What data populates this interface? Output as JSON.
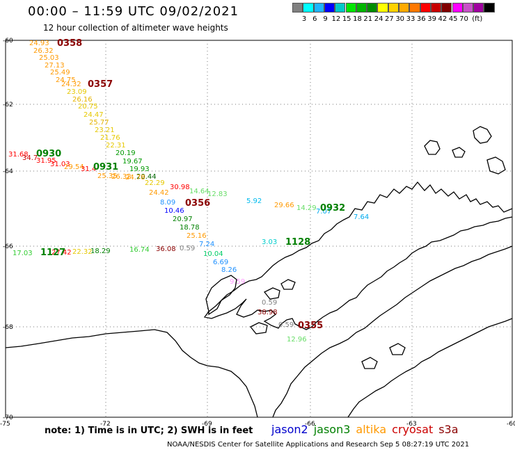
{
  "title": "00:00 – 11:59 UTC 09/02/2021",
  "subtitle": "12 hour collection of altimeter wave heights",
  "scale": {
    "colors": [
      "#808080",
      "#00ffff",
      "#1fb4ff",
      "#0000ff",
      "#00c8c8",
      "#00e600",
      "#00b400",
      "#008c00",
      "#ffff00",
      "#ffd200",
      "#ffaa00",
      "#ff7800",
      "#ff0000",
      "#c80000",
      "#800000",
      "#ff00ff",
      "#c850c8",
      "#a000a0",
      "#000000"
    ],
    "labels": [
      "3",
      "6",
      "9",
      "12",
      "15",
      "18",
      "21",
      "24",
      "27",
      "30",
      "33",
      "36",
      "39",
      "42",
      "45",
      "70",
      "(ft)"
    ]
  },
  "axes": {
    "lat_labels": [
      "-60",
      "-62",
      "-64",
      "-66",
      "-68",
      "-70"
    ],
    "lon_labels": [
      "-75",
      "-72",
      "-69",
      "-66",
      "-63",
      "-60"
    ]
  },
  "tracks": [
    {
      "time": "0358",
      "color": "#8b0000",
      "values": [
        {
          "v": "24.93",
          "c": "#ff9900"
        },
        {
          "v": "26.32",
          "c": "#ff9900"
        },
        {
          "v": "25.03",
          "c": "#ff9900"
        },
        {
          "v": "27.13",
          "c": "#ff9900"
        },
        {
          "v": "25.49",
          "c": "#ff9900"
        },
        {
          "v": "24.75",
          "c": "#ff9900"
        },
        {
          "v": "24.32",
          "c": "#ff9900"
        }
      ]
    },
    {
      "time": "0357",
      "color": "#8b0000",
      "values": [
        {
          "v": "23.09",
          "c": "#e6c800"
        },
        {
          "v": "26.16",
          "c": "#e6b400"
        },
        {
          "v": "20.75",
          "c": "#e6c800"
        },
        {
          "v": "24.47",
          "c": "#e6c800"
        },
        {
          "v": "25.77",
          "c": "#e6b400"
        },
        {
          "v": "23.21",
          "c": "#e6c800"
        },
        {
          "v": "21.76",
          "c": "#e6c800"
        },
        {
          "v": "22.31",
          "c": "#e6c800"
        }
      ]
    },
    {
      "time": "0930",
      "color": "#008000",
      "values": [
        {
          "v": "31.68",
          "c": "#ff0000"
        },
        {
          "v": "34.7",
          "c": "#c80000"
        },
        {
          "v": "31.95",
          "c": "#ff0000"
        },
        {
          "v": "31.03",
          "c": "#ff0000"
        }
      ]
    },
    {
      "time": "0931",
      "color": "#008000",
      "values": [
        {
          "v": "29.54",
          "c": "#ff9900"
        },
        {
          "v": "31.4",
          "c": "#ff0000"
        },
        {
          "v": "20.19",
          "c": "#009900"
        },
        {
          "v": "19.67",
          "c": "#009900"
        },
        {
          "v": "19.93",
          "c": "#009900"
        },
        {
          "v": "20.44",
          "c": "#006600"
        }
      ]
    },
    {
      "time": "0356",
      "color": "#8b0000",
      "values": [
        {
          "v": "25.35",
          "c": "#ff9900"
        },
        {
          "v": "26.32",
          "c": "#ff9900"
        },
        {
          "v": "24.78",
          "c": "#ff9900"
        },
        {
          "v": "22.29",
          "c": "#e6c800"
        },
        {
          "v": "24.42",
          "c": "#ff9900"
        },
        {
          "v": "30.98",
          "c": "#ff0000"
        },
        {
          "v": "8.09",
          "c": "#1e90ff"
        },
        {
          "v": "10.46",
          "c": "#0000ff"
        },
        {
          "v": "20.97",
          "c": "#008000"
        },
        {
          "v": "18.78",
          "c": "#008000"
        },
        {
          "v": "25.16",
          "c": "#ff9900"
        },
        {
          "v": "7.24",
          "c": "#1e90ff"
        },
        {
          "v": "10.04",
          "c": "#00cc66"
        },
        {
          "v": "6.69",
          "c": "#1e90ff"
        },
        {
          "v": "8.26",
          "c": "#1e90ff"
        }
      ]
    },
    {
      "time": "0932",
      "color": "#008000",
      "values": [
        {
          "v": "14.64",
          "c": "#66dd66"
        },
        {
          "v": "12.83",
          "c": "#66dd66"
        },
        {
          "v": "5.92",
          "c": "#00bbee"
        },
        {
          "v": "29.66",
          "c": "#ff9900"
        },
        {
          "v": "14.29",
          "c": "#66dd66"
        },
        {
          "v": "7.07",
          "c": "#00aaee"
        },
        {
          "v": "7.64",
          "c": "#00aaee"
        }
      ]
    },
    {
      "time": "1128",
      "color": "#008000",
      "values": [
        {
          "v": "3.03",
          "c": "#00cccc"
        }
      ]
    },
    {
      "time": "1127",
      "color": "#008000",
      "values": [
        {
          "v": "17.03",
          "c": "#33cc33"
        },
        {
          "v": "27.42",
          "c": "#ff0000"
        },
        {
          "v": "22.32",
          "c": "#e6c800"
        },
        {
          "v": "18.29",
          "c": "#008000"
        },
        {
          "v": "16.74",
          "c": "#33cc33"
        },
        {
          "v": "36.08",
          "c": "#8b0000"
        },
        {
          "v": "0.59",
          "c": "#808080"
        }
      ]
    },
    {
      "time": "0355",
      "color": "#8b0000",
      "values": [
        {
          "v": "9.59",
          "c": "#ff99ff"
        },
        {
          "v": "0.59",
          "c": "#808080"
        },
        {
          "v": "38.98",
          "c": "#8b0000"
        },
        {
          "v": "0.59",
          "c": "#808080"
        },
        {
          "v": "12.96",
          "c": "#66dd66"
        }
      ]
    }
  ],
  "note": "note: 1) Time is in UTC; 2) SWH is in feet",
  "legend": [
    {
      "name": "jason2",
      "color": "#0000cc"
    },
    {
      "name": "jason3",
      "color": "#008000"
    },
    {
      "name": "altika",
      "color": "#ff9900"
    },
    {
      "name": "cryosat",
      "color": "#cc0000"
    },
    {
      "name": "s3a",
      "color": "#8b0000"
    }
  ],
  "credit": "NOAA/NESDIS Center for Satellite Applications and Research   Sep  5 08:27:19 UTC 2021"
}
